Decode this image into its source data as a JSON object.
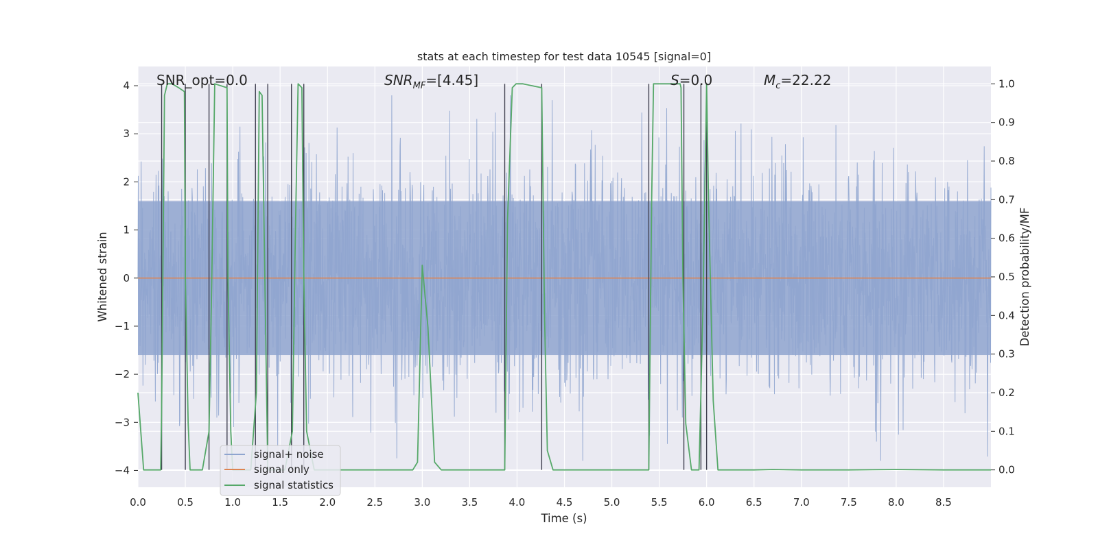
{
  "chart_data": {
    "type": "line",
    "title": "stats at each timestep for test data 10545 [signal=0]",
    "xlabel": "Time (s)",
    "ylabel": "Whitened strain",
    "ylabel_right": "Detection probability/MF",
    "xlim": [
      0.0,
      9.0
    ],
    "ylim": [
      -4.35,
      4.4
    ],
    "ylim_right": [
      -0.045,
      1.045
    ],
    "x_ticks": [
      0.0,
      0.5,
      1.0,
      1.5,
      2.0,
      2.5,
      3.0,
      3.5,
      4.0,
      4.5,
      5.0,
      5.5,
      6.0,
      6.5,
      7.0,
      7.5,
      8.0,
      8.5
    ],
    "x_tick_labels": [
      "0.0",
      "0.5",
      "1.0",
      "1.5",
      "2.0",
      "2.5",
      "3.0",
      "3.5",
      "4.0",
      "4.5",
      "5.0",
      "5.5",
      "6.0",
      "6.5",
      "7.0",
      "7.5",
      "8.0",
      "8.5"
    ],
    "y_ticks": [
      -4,
      -3,
      -2,
      -1,
      0,
      1,
      2,
      3,
      4
    ],
    "y_tick_labels": [
      "−4",
      "−3",
      "−2",
      "−1",
      "0",
      "1",
      "2",
      "3",
      "4"
    ],
    "y_right_ticks": [
      0.0,
      0.1,
      0.2,
      0.3,
      0.4,
      0.5,
      0.6,
      0.7,
      0.8,
      0.9,
      1.0
    ],
    "y_right_tick_labels": [
      "0.0",
      "0.1",
      "0.2",
      "0.3",
      "0.4",
      "0.5",
      "0.6",
      "0.7",
      "0.8",
      "0.9",
      "1.0"
    ],
    "annotations": {
      "snr_opt": "SNR_opt=0.0",
      "snr_mf_main": "SNR",
      "snr_mf_sub": "MF",
      "snr_mf_value": "=[4.45]",
      "s_main": "S",
      "s_value": "=0.0",
      "mc_main": "M",
      "mc_sub": "c",
      "mc_value": "=22.22"
    },
    "legend": {
      "placement": "lower-left",
      "entries": [
        "signal+ noise",
        "signal only",
        "signal statistics"
      ]
    },
    "colors": {
      "background": "#eaeaf2",
      "grid": "#ffffff",
      "noise": "#8fa5cf",
      "signal_only": "#dd8452",
      "statistics": "#55a868",
      "markers": "#3f3f4f"
    },
    "series": [
      {
        "name": "signal+ noise",
        "note": "whitened noise trace, amplitude approx +/-4, bulk within +/-1.6",
        "envelope_hi": 1.6,
        "envelope_lo": -1.6,
        "peak": 3.8
      },
      {
        "name": "signal only",
        "x": [
          0.0,
          9.0
        ],
        "y": [
          0.0,
          0.0
        ]
      },
      {
        "name": "signal statistics",
        "axis": "right",
        "x": [
          0.0,
          0.06,
          0.24,
          0.25,
          0.28,
          0.31,
          0.36,
          0.43,
          0.49,
          0.5,
          0.53,
          0.55,
          0.58,
          0.68,
          0.75,
          0.78,
          0.81,
          0.94,
          0.95,
          0.98,
          1.0,
          1.08,
          1.19,
          1.25,
          1.28,
          1.31,
          1.37,
          1.44,
          1.55,
          1.63,
          1.66,
          1.69,
          1.73,
          1.75,
          1.78,
          1.86,
          1.95,
          2.05,
          2.9,
          2.95,
          3.0,
          3.06,
          3.13,
          3.2,
          3.35,
          3.87,
          3.9,
          3.95,
          3.99,
          4.02,
          4.06,
          4.26,
          4.29,
          4.32,
          4.38,
          4.52,
          5.3,
          5.39,
          5.42,
          5.44,
          5.72,
          5.73,
          5.75,
          5.78,
          5.84,
          5.92,
          5.96,
          6.0,
          6.02,
          6.07,
          6.12,
          6.5,
          6.7,
          7.0,
          7.5,
          8.0,
          8.5,
          9.0
        ],
        "y": [
          0.2,
          0.0,
          0.0,
          0.15,
          0.97,
          1.0,
          1.0,
          0.99,
          0.98,
          0.5,
          0.12,
          0.0,
          0.0,
          0.0,
          0.1,
          0.5,
          1.0,
          0.99,
          0.5,
          0.1,
          0.0,
          0.0,
          0.0,
          0.2,
          0.98,
          0.97,
          0.0,
          0.0,
          0.0,
          0.1,
          0.6,
          1.0,
          0.99,
          0.5,
          0.1,
          0.0,
          0.0,
          0.0,
          0.0,
          0.02,
          0.53,
          0.37,
          0.02,
          0.0,
          0.0,
          0.0,
          0.65,
          0.99,
          1.0,
          1.0,
          1.0,
          0.99,
          0.4,
          0.05,
          0.0,
          0.0,
          0.0,
          0.0,
          0.7,
          1.0,
          1.0,
          0.99,
          0.5,
          0.12,
          0.0,
          0.0,
          0.4,
          1.0,
          0.7,
          0.18,
          0.0,
          0.0,
          0.001,
          0.0,
          0.0,
          0.001,
          0.0,
          0.0
        ]
      }
    ],
    "event_markers_x": [
      0.25,
      0.5,
      0.75,
      0.94,
      1.24,
      1.37,
      1.62,
      1.75,
      3.87,
      4.26,
      5.39,
      5.76,
      5.94,
      6.0
    ]
  }
}
